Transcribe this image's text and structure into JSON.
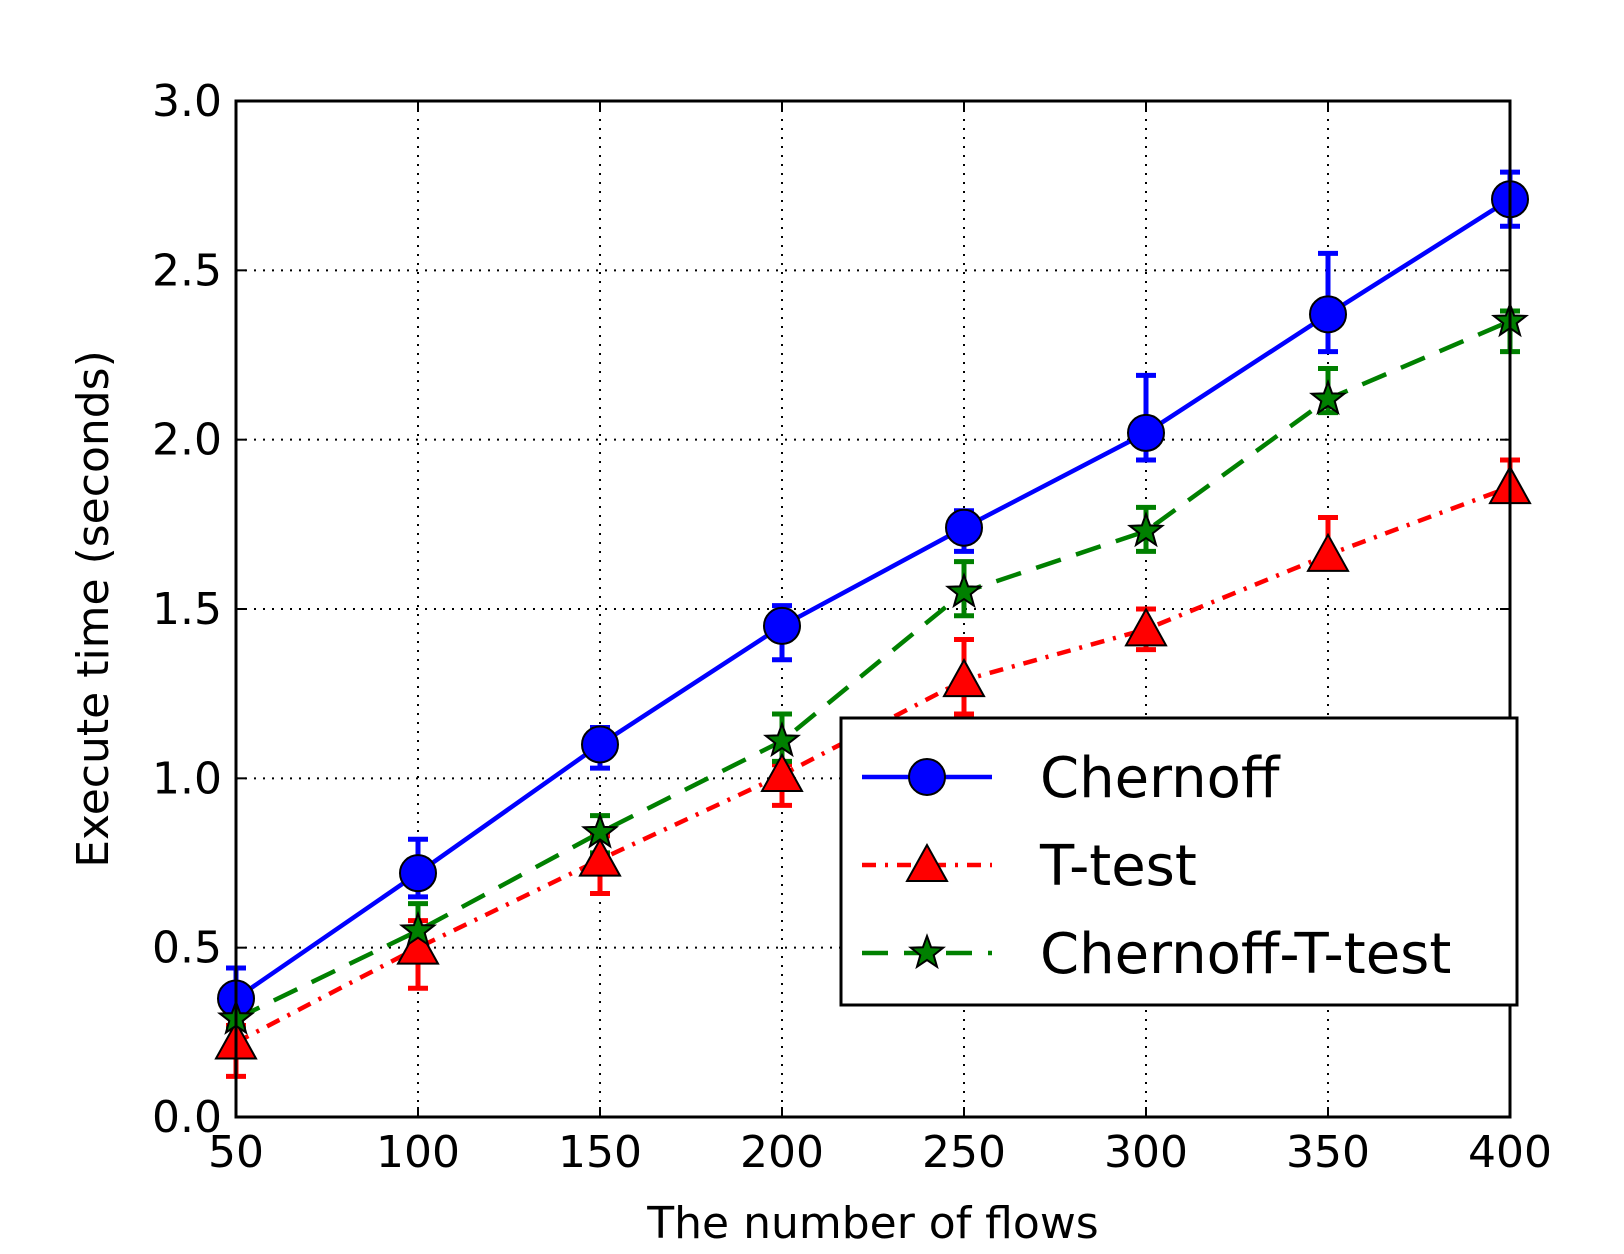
{
  "chart_data": {
    "type": "line",
    "title": "",
    "xlabel": "The number of flows",
    "ylabel": "Execute time (seconds)",
    "xlim": [
      50,
      400
    ],
    "ylim": [
      0.0,
      3.0
    ],
    "xticks": [
      50,
      100,
      150,
      200,
      250,
      300,
      350,
      400
    ],
    "yticks": [
      0.0,
      0.5,
      1.0,
      1.5,
      2.0,
      2.5,
      3.0
    ],
    "xtick_labels": [
      "50",
      "100",
      "150",
      "200",
      "250",
      "300",
      "350",
      "400"
    ],
    "ytick_labels": [
      "0.0",
      "0.5",
      "1.0",
      "1.5",
      "2.0",
      "2.5",
      "3.0"
    ],
    "grid": true,
    "grid_style": "dotted",
    "legend_position": "lower-right",
    "series": [
      {
        "name": "Chernoff",
        "color": "#0000ff",
        "marker": "circle",
        "line_style": "solid",
        "x": [
          50,
          100,
          150,
          200,
          250,
          300,
          350,
          400
        ],
        "y": [
          0.35,
          0.72,
          1.1,
          1.45,
          1.74,
          2.02,
          2.37,
          2.71
        ],
        "err_low": [
          0.3,
          0.65,
          1.03,
          1.35,
          1.67,
          1.94,
          2.26,
          2.63
        ],
        "err_high": [
          0.44,
          0.82,
          1.15,
          1.51,
          1.79,
          2.19,
          2.55,
          2.79
        ]
      },
      {
        "name": "T-test",
        "color": "#ff0000",
        "marker": "triangle",
        "line_style": "dashdot",
        "x": [
          50,
          100,
          150,
          200,
          250,
          300,
          350,
          400
        ],
        "y": [
          0.22,
          0.5,
          0.76,
          1.01,
          1.29,
          1.44,
          1.66,
          1.86
        ],
        "err_low": [
          0.12,
          0.38,
          0.66,
          0.92,
          1.19,
          1.38,
          1.63,
          1.84
        ],
        "err_high": [
          0.27,
          0.58,
          0.83,
          1.04,
          1.41,
          1.5,
          1.77,
          1.94
        ]
      },
      {
        "name": "Chernoff-T-test",
        "color": "#008000",
        "marker": "star",
        "line_style": "dashed",
        "x": [
          50,
          100,
          150,
          200,
          250,
          300,
          350,
          400
        ],
        "y": [
          0.29,
          0.55,
          0.84,
          1.11,
          1.55,
          1.73,
          2.12,
          2.35
        ],
        "err_low": [
          0.26,
          0.48,
          0.78,
          1.05,
          1.48,
          1.67,
          2.08,
          2.26
        ],
        "err_high": [
          0.35,
          0.63,
          0.89,
          1.19,
          1.64,
          1.8,
          2.21,
          2.38
        ]
      }
    ]
  }
}
